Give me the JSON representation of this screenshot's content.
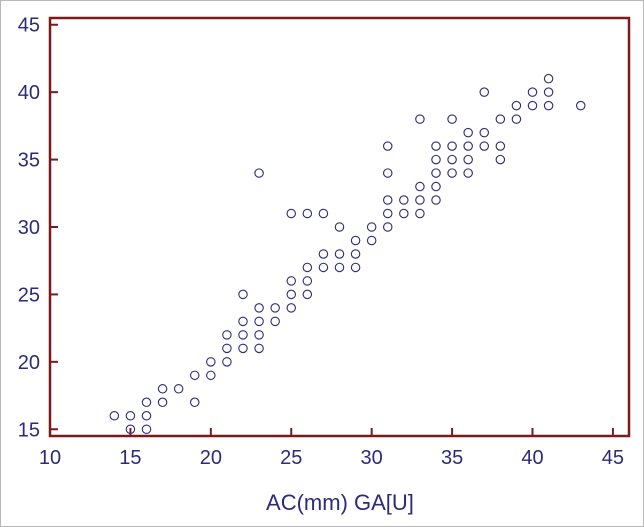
{
  "chart_data": {
    "type": "scatter",
    "title": "",
    "xlabel": "AC(mm) GA[U]",
    "ylabel": "",
    "xlim": [
      10,
      46
    ],
    "ylim": [
      14.5,
      45.5
    ],
    "xticks": [
      10,
      15,
      20,
      25,
      30,
      35,
      40,
      45
    ],
    "yticks": [
      15,
      20,
      25,
      30,
      35,
      40,
      45
    ],
    "grid": false,
    "legend": "none",
    "colors": {
      "frame": "#7a1a1a",
      "marker": "#2b2b7a",
      "text": "#2b2b7a"
    },
    "series": [
      {
        "marker": "open-circle",
        "points": [
          [
            14,
            16
          ],
          [
            15,
            16
          ],
          [
            15,
            15
          ],
          [
            16,
            17
          ],
          [
            16,
            16
          ],
          [
            16,
            15
          ],
          [
            17,
            18
          ],
          [
            17,
            17
          ],
          [
            18,
            18
          ],
          [
            19,
            19
          ],
          [
            19,
            17
          ],
          [
            20,
            20
          ],
          [
            20,
            19
          ],
          [
            21,
            22
          ],
          [
            21,
            21
          ],
          [
            21,
            20
          ],
          [
            22,
            25
          ],
          [
            22,
            23
          ],
          [
            22,
            22
          ],
          [
            22,
            21
          ],
          [
            23,
            34
          ],
          [
            23,
            24
          ],
          [
            23,
            23
          ],
          [
            23,
            22
          ],
          [
            23,
            21
          ],
          [
            24,
            24
          ],
          [
            24,
            23
          ],
          [
            25,
            31
          ],
          [
            25,
            26
          ],
          [
            25,
            25
          ],
          [
            25,
            24
          ],
          [
            26,
            31
          ],
          [
            26,
            27
          ],
          [
            26,
            26
          ],
          [
            26,
            25
          ],
          [
            27,
            31
          ],
          [
            27,
            28
          ],
          [
            27,
            27
          ],
          [
            28,
            30
          ],
          [
            28,
            28
          ],
          [
            28,
            27
          ],
          [
            29,
            29
          ],
          [
            29,
            28
          ],
          [
            29,
            27
          ],
          [
            30,
            30
          ],
          [
            30,
            29
          ],
          [
            31,
            36
          ],
          [
            31,
            34
          ],
          [
            31,
            32
          ],
          [
            31,
            31
          ],
          [
            31,
            30
          ],
          [
            32,
            32
          ],
          [
            32,
            31
          ],
          [
            33,
            38
          ],
          [
            33,
            33
          ],
          [
            33,
            32
          ],
          [
            33,
            31
          ],
          [
            34,
            36
          ],
          [
            34,
            35
          ],
          [
            34,
            34
          ],
          [
            34,
            33
          ],
          [
            34,
            32
          ],
          [
            35,
            38
          ],
          [
            35,
            36
          ],
          [
            35,
            35
          ],
          [
            35,
            34
          ],
          [
            36,
            37
          ],
          [
            36,
            36
          ],
          [
            36,
            35
          ],
          [
            36,
            34
          ],
          [
            37,
            40
          ],
          [
            37,
            37
          ],
          [
            37,
            36
          ],
          [
            38,
            38
          ],
          [
            38,
            36
          ],
          [
            38,
            35
          ],
          [
            39,
            39
          ],
          [
            39,
            38
          ],
          [
            40,
            40
          ],
          [
            40,
            39
          ],
          [
            41,
            41
          ],
          [
            41,
            40
          ],
          [
            41,
            39
          ],
          [
            43,
            39
          ]
        ]
      }
    ]
  }
}
